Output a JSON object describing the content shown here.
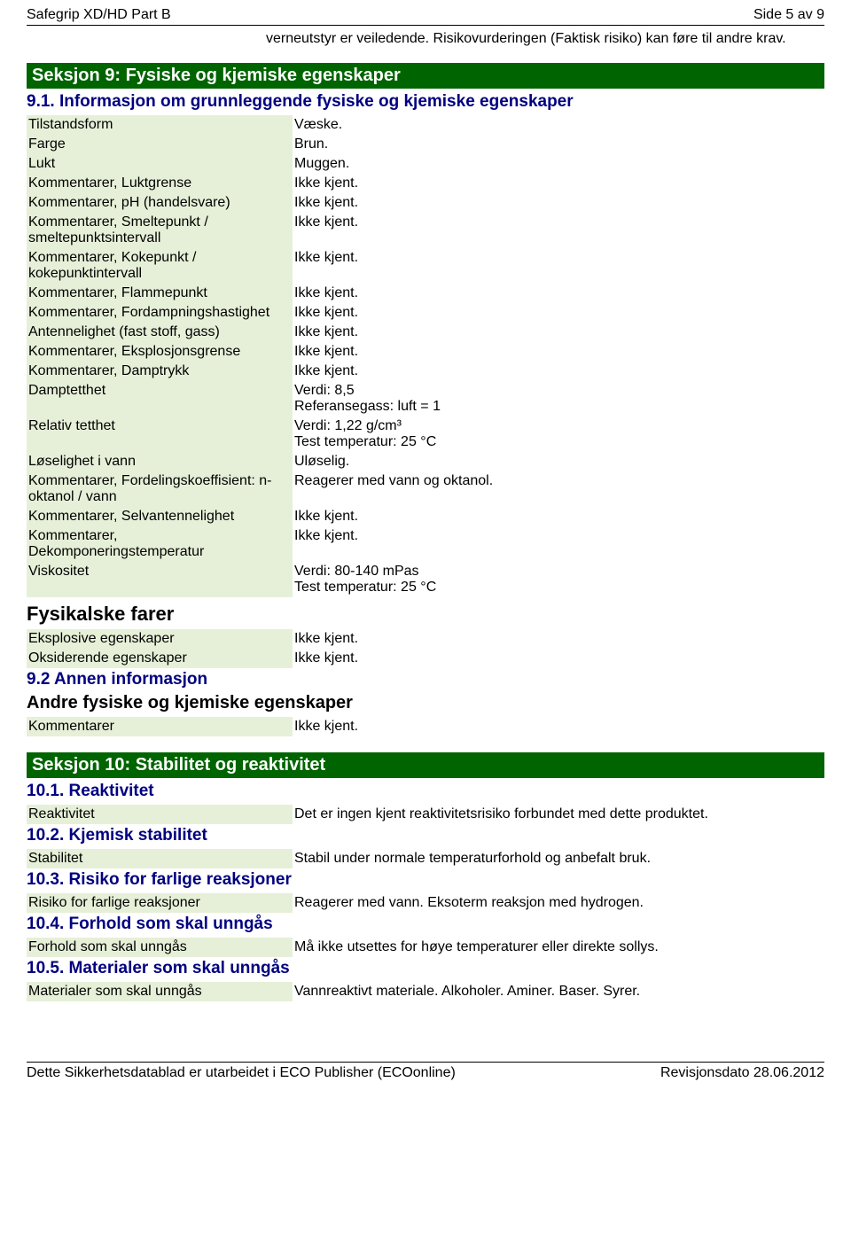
{
  "header": {
    "title": "Safegrip XD/HD Part B",
    "page": "Side 5 av 9"
  },
  "intro": "verneutstyr er veiledende. Risikovurderingen (Faktisk risiko) kan føre til andre krav.",
  "section9": {
    "bar": "Seksjon 9: Fysiske og kjemiske egenskaper",
    "h91": "9.1. Informasjon om grunnleggende fysiske og kjemiske egenskaper",
    "rows": [
      {
        "k": "Tilstandsform",
        "v": "Væske."
      },
      {
        "k": "Farge",
        "v": "Brun."
      },
      {
        "k": "Lukt",
        "v": "Muggen."
      },
      {
        "k": "Kommentarer, Luktgrense",
        "v": "Ikke kjent."
      },
      {
        "k": "Kommentarer, pH (handelsvare)",
        "v": "Ikke kjent."
      },
      {
        "k": "Kommentarer, Smeltepunkt / smeltepunktsintervall",
        "v": "Ikke kjent."
      },
      {
        "k": "Kommentarer, Kokepunkt / kokepunktintervall",
        "v": "Ikke kjent."
      },
      {
        "k": "Kommentarer, Flammepunkt",
        "v": "Ikke kjent."
      },
      {
        "k": "Kommentarer, Fordampningshastighet",
        "v": "Ikke kjent."
      },
      {
        "k": "Antennelighet (fast stoff, gass)",
        "v": "Ikke kjent."
      },
      {
        "k": "Kommentarer, Eksplosjonsgrense",
        "v": "Ikke kjent."
      },
      {
        "k": "Kommentarer, Damptrykk",
        "v": "Ikke kjent."
      },
      {
        "k": "Damptetthet",
        "v": "Verdi: 8,5\nReferansegass: luft = 1"
      },
      {
        "k": "Relativ tetthet",
        "v": "Verdi: 1,22 g/cm³\nTest temperatur: 25 °C"
      },
      {
        "k": "Løselighet i vann",
        "v": "Uløselig."
      },
      {
        "k": "Kommentarer, Fordelingskoeffisient: n-oktanol / vann",
        "v": "Reagerer med vann og oktanol."
      },
      {
        "k": "Kommentarer, Selvantennelighet",
        "v": "Ikke kjent."
      },
      {
        "k": "Kommentarer, Dekomponeringstemperatur",
        "v": "Ikke kjent."
      },
      {
        "k": "Viskositet",
        "v": "Verdi: 80-140 mPas\nTest temperatur: 25 °C"
      }
    ],
    "h_fys": "Fysikalske farer",
    "rows_fys": [
      {
        "k": "Eksplosive egenskaper",
        "v": "Ikke kjent."
      },
      {
        "k": "Oksiderende egenskaper",
        "v": "Ikke kjent."
      }
    ],
    "h92": "9.2 Annen informasjon",
    "h_andre": "Andre fysiske og kjemiske egenskaper",
    "rows_andre": [
      {
        "k": "Kommentarer",
        "v": "Ikke kjent."
      }
    ]
  },
  "section10": {
    "bar": "Seksjon 10: Stabilitet og reaktivitet",
    "h101": "10.1. Reaktivitet",
    "rows101": [
      {
        "k": "Reaktivitet",
        "v": "Det er ingen kjent reaktivitetsrisiko forbundet med dette produktet."
      }
    ],
    "h102": "10.2. Kjemisk stabilitet",
    "rows102": [
      {
        "k": "Stabilitet",
        "v": "Stabil under normale temperaturforhold og anbefalt bruk."
      }
    ],
    "h103": "10.3. Risiko for farlige reaksjoner",
    "rows103": [
      {
        "k": "Risiko for farlige reaksjoner",
        "v": "Reagerer med vann. Eksoterm reaksjon med hydrogen."
      }
    ],
    "h104": "10.4. Forhold som skal unngås",
    "rows104": [
      {
        "k": "Forhold som skal unngås",
        "v": "Må ikke utsettes for høye temperaturer eller direkte sollys."
      }
    ],
    "h105": "10.5. Materialer som skal unngås",
    "rows105": [
      {
        "k": "Materialer som skal unngås",
        "v": "Vannreaktivt materiale. Alkoholer. Aminer. Baser. Syrer."
      }
    ]
  },
  "footer": {
    "left": "Dette Sikkerhetsdatablad er utarbeidet i ECO Publisher (ECOonline)",
    "right": "Revisjonsdato 28.06.2012"
  },
  "style": {
    "section_bar_bg": "#006400",
    "section_bar_fg": "#ffffff",
    "key_bg": "#e6f0d8",
    "blue_heading": "#000080",
    "font_family": "Arial"
  }
}
